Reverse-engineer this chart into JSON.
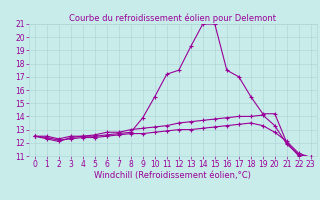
{
  "title": "Courbe du refroidissement éolien pour Delemont",
  "xlabel": "Windchill (Refroidissement éolien,°C)",
  "background_color": "#c8ecea",
  "line_color": "#990099",
  "grid_color": "#b0d8d8",
  "xlim": [
    -0.5,
    23.5
  ],
  "ylim": [
    11,
    21
  ],
  "yticks": [
    11,
    12,
    13,
    14,
    15,
    16,
    17,
    18,
    19,
    20,
    21
  ],
  "xticks": [
    0,
    1,
    2,
    3,
    4,
    5,
    6,
    7,
    8,
    9,
    10,
    11,
    12,
    13,
    14,
    15,
    16,
    17,
    18,
    19,
    20,
    21,
    22,
    23
  ],
  "line1_x": [
    0,
    1,
    2,
    3,
    4,
    5,
    6,
    7,
    8,
    9,
    10,
    11,
    12,
    13,
    14,
    15,
    16,
    17,
    18,
    19,
    20,
    21,
    22,
    23
  ],
  "line1_y": [
    12.5,
    12.5,
    12.3,
    12.5,
    12.5,
    12.5,
    12.6,
    12.7,
    12.8,
    13.9,
    15.5,
    17.2,
    17.5,
    19.3,
    21.0,
    21.0,
    17.5,
    17.0,
    15.5,
    14.2,
    14.2,
    12.0,
    11.0,
    10.9
  ],
  "line2_x": [
    0,
    1,
    2,
    3,
    4,
    5,
    6,
    7,
    8,
    9,
    10,
    11,
    12,
    13,
    14,
    15,
    16,
    17,
    18,
    19,
    20,
    21,
    22,
    23
  ],
  "line2_y": [
    12.5,
    12.3,
    12.1,
    12.4,
    12.5,
    12.6,
    12.8,
    12.8,
    13.0,
    13.1,
    13.2,
    13.3,
    13.5,
    13.6,
    13.7,
    13.8,
    13.9,
    14.0,
    14.0,
    14.1,
    13.3,
    11.9,
    11.1,
    10.9
  ],
  "line3_x": [
    0,
    1,
    2,
    3,
    4,
    5,
    6,
    7,
    8,
    9,
    10,
    11,
    12,
    13,
    14,
    15,
    16,
    17,
    18,
    19,
    20,
    21,
    22,
    23
  ],
  "line3_y": [
    12.5,
    12.4,
    12.2,
    12.3,
    12.4,
    12.4,
    12.5,
    12.6,
    12.7,
    12.7,
    12.8,
    12.9,
    13.0,
    13.0,
    13.1,
    13.2,
    13.3,
    13.4,
    13.5,
    13.3,
    12.8,
    12.1,
    11.2,
    10.9
  ],
  "title_fontsize": 6,
  "tick_fontsize": 5.5,
  "xlabel_fontsize": 6,
  "lw": 0.8,
  "ms": 3,
  "mew": 0.8
}
